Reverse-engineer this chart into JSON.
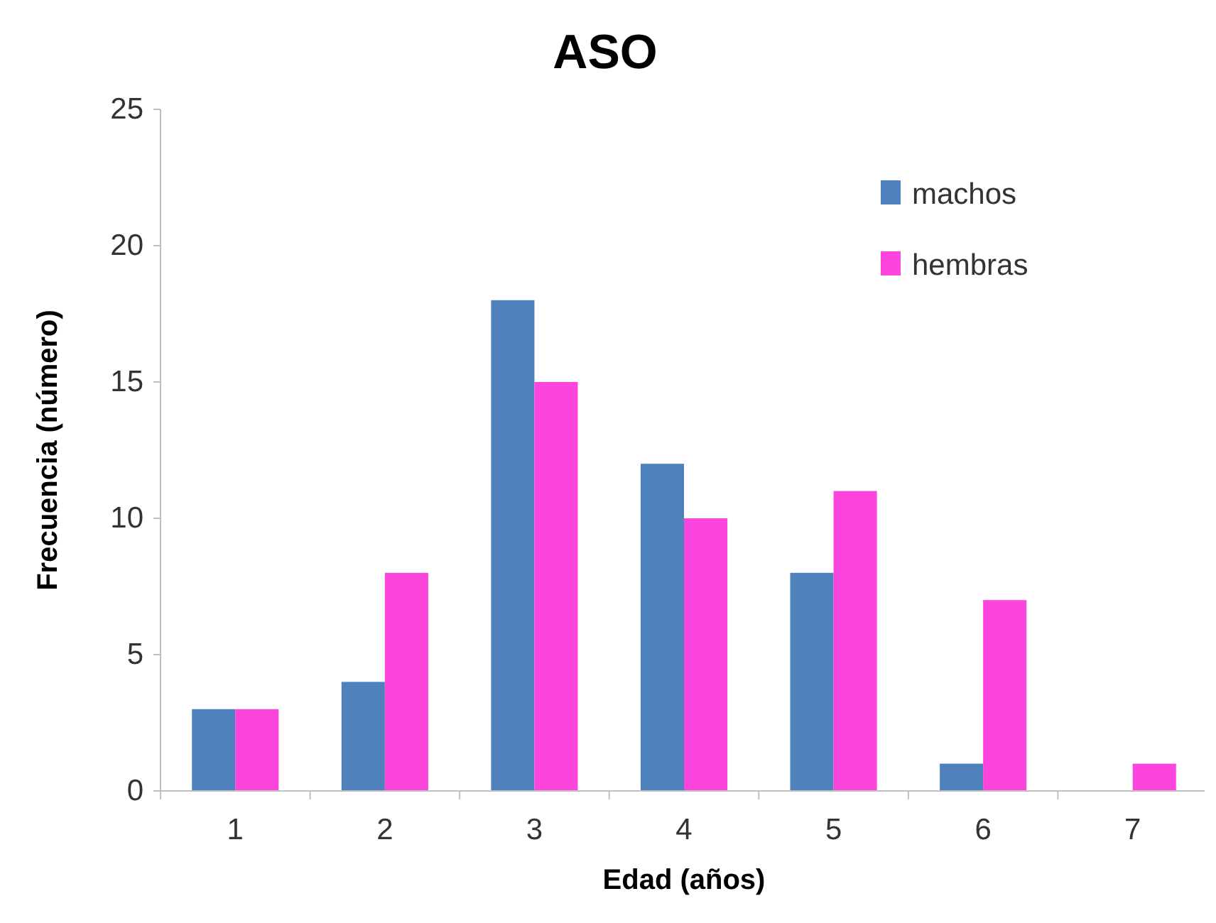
{
  "chart_data": {
    "type": "bar",
    "title": "ASO",
    "xlabel": "Edad (años)",
    "ylabel": "Frecuencia (número)",
    "categories": [
      "1",
      "2",
      "3",
      "4",
      "5",
      "6",
      "7"
    ],
    "series": [
      {
        "name": "machos",
        "color": "#4f81bd",
        "values": [
          3,
          4,
          18,
          12,
          8,
          1,
          0
        ]
      },
      {
        "name": "hembras",
        "color": "#fb45dc",
        "values": [
          3,
          8,
          15,
          10,
          11,
          7,
          1
        ]
      }
    ],
    "ylim": [
      0,
      25
    ],
    "yticks": [
      0,
      5,
      10,
      15,
      20,
      25
    ],
    "grid": false,
    "legend": "top right"
  }
}
